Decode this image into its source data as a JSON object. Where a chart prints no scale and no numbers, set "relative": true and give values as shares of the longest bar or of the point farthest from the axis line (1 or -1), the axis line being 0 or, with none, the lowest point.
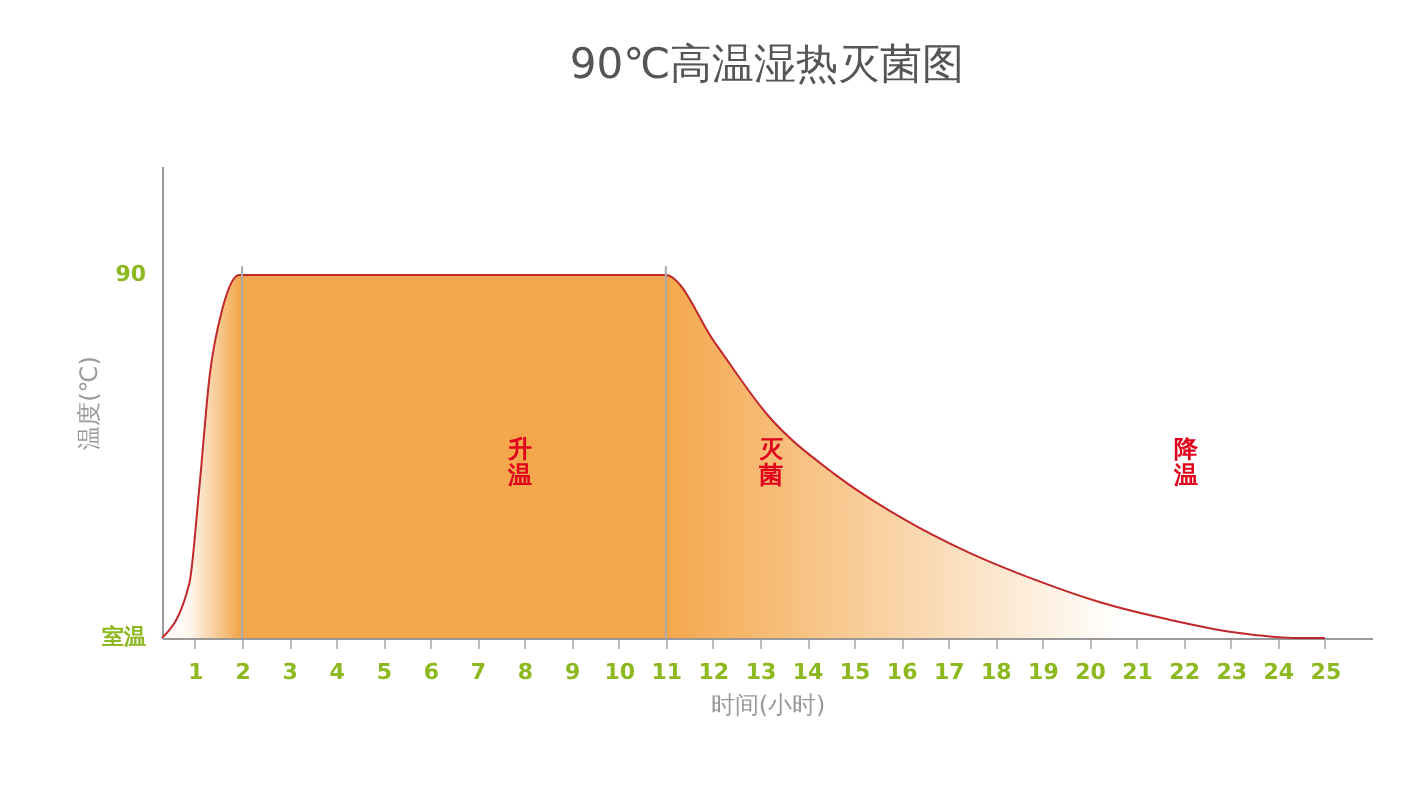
{
  "chart_data": {
    "type": "area",
    "title": "90℃高温湿热灭菌图",
    "xlabel": "时间(小时)",
    "ylabel": "温度(℃)",
    "relative": true,
    "series": [
      {
        "color": "#ef8200",
        "x": [
          0.3,
          0.88,
          1.09,
          1.31,
          1.59,
          1.94,
          11,
          12.06,
          13.19,
          14.6,
          16.02,
          17.44,
          18.85,
          20.26,
          21.68,
          23.1,
          24.5,
          25
        ],
        "values": [
          0,
          0.15,
          0.41,
          0.72,
          0.91,
          1,
          1,
          0.81,
          0.61,
          0.45,
          0.33,
          0.235,
          0.16,
          0.097,
          0.051,
          0.015,
          0,
          0
        ]
      }
    ],
    "xlim": [
      0.3,
      26
    ],
    "xticks": [
      1,
      2,
      3,
      4,
      5,
      6,
      7,
      8,
      9,
      10,
      11,
      12,
      13,
      14,
      15,
      16,
      17,
      18,
      19,
      20,
      21,
      22,
      23,
      24,
      25
    ],
    "ref_lines": [
      {
        "axis": "x",
        "value": 2,
        "color": "#aaaaaa"
      },
      {
        "axis": "x",
        "value": 11,
        "color": "#aaaaaa"
      }
    ],
    "annotations": [
      "90",
      "室温",
      "升温",
      "灭菌",
      "降温"
    ],
    "grid": false
  }
}
